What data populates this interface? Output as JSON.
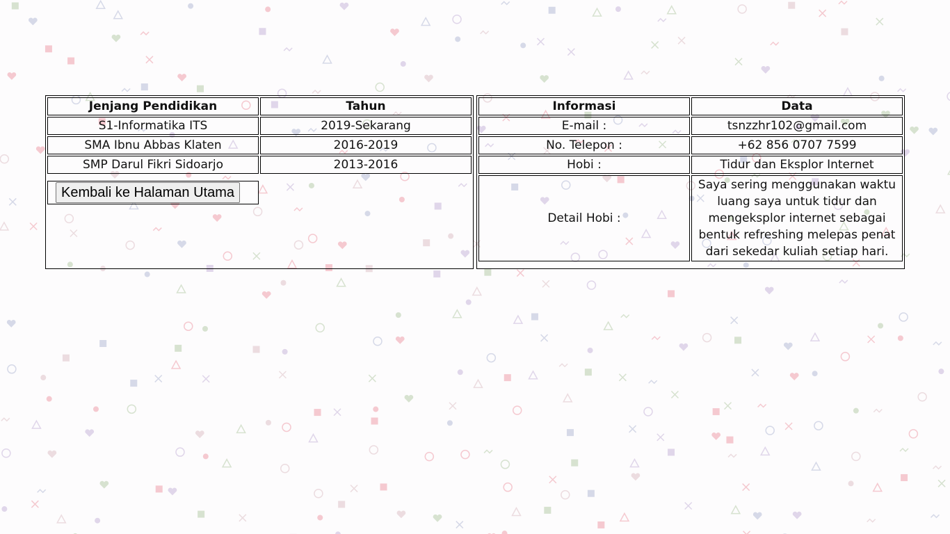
{
  "education": {
    "headers": {
      "level": "Jenjang Pendidikan",
      "year": "Tahun"
    },
    "rows": [
      {
        "level": "S1-Informatika ITS",
        "year": "2019-Sekarang"
      },
      {
        "level": "SMA Ibnu Abbas Klaten",
        "year": "2016-2019"
      },
      {
        "level": "SMP Darul Fikri Sidoarjo",
        "year": "2013-2016"
      }
    ],
    "back_button_label": "Kembali ke Halaman Utama"
  },
  "info": {
    "headers": {
      "label": "Informasi",
      "value": "Data"
    },
    "rows": [
      {
        "label": "E-mail :",
        "value": "tsnzzhr102@gmail.com"
      },
      {
        "label": "No. Telepon :",
        "value": "+62 856 0707 7599"
      },
      {
        "label": "Hobi :",
        "value": "Tidur dan Eksplor Internet"
      },
      {
        "label": "Detail Hobi :",
        "value": "Saya sering menggunakan waktu luang saya untuk tidur dan mengeksplor internet sebagai bentuk refreshing melepas penat dari sekedar kuliah setiap hari."
      }
    ]
  },
  "colors": {
    "pattern": [
      "#f2b8c0",
      "#c9d9c0",
      "#c8cde0",
      "#d6c9e3",
      "#e6d2d5"
    ]
  }
}
